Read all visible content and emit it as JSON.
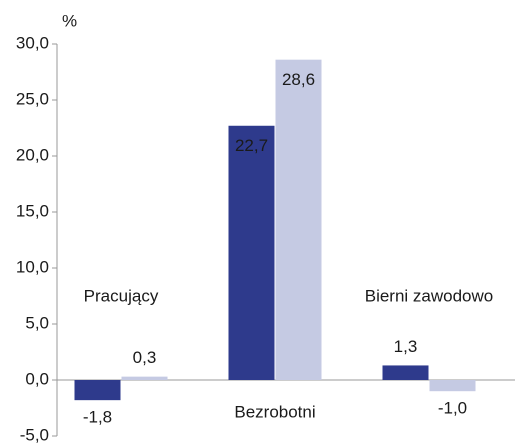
{
  "chart_data": {
    "type": "bar",
    "y_label": "%",
    "categories": [
      "Pracujący",
      "Bezrobotni",
      "Bierni zawodowo"
    ],
    "series": [
      {
        "color": "#2e3a8c",
        "values": [
          -1.8,
          22.7,
          1.3
        ],
        "value_labels": [
          "-1,8",
          "22,7",
          "1,3"
        ]
      },
      {
        "color": "#c5cae3",
        "values": [
          0.3,
          28.6,
          -1.0
        ],
        "value_labels": [
          "0,3",
          "28,6",
          "-1,0"
        ]
      }
    ],
    "ylim": [
      -5,
      30
    ],
    "yticks": [
      {
        "value": -5,
        "label": "-5,0"
      },
      {
        "value": 0,
        "label": "0,0"
      },
      {
        "value": 5,
        "label": "5,0"
      },
      {
        "value": 10,
        "label": "10,0"
      },
      {
        "value": 15,
        "label": "15,0"
      },
      {
        "value": 20,
        "label": "20,0"
      },
      {
        "value": 25,
        "label": "25,0"
      },
      {
        "value": 30,
        "label": "30,0"
      }
    ],
    "grid": false
  }
}
